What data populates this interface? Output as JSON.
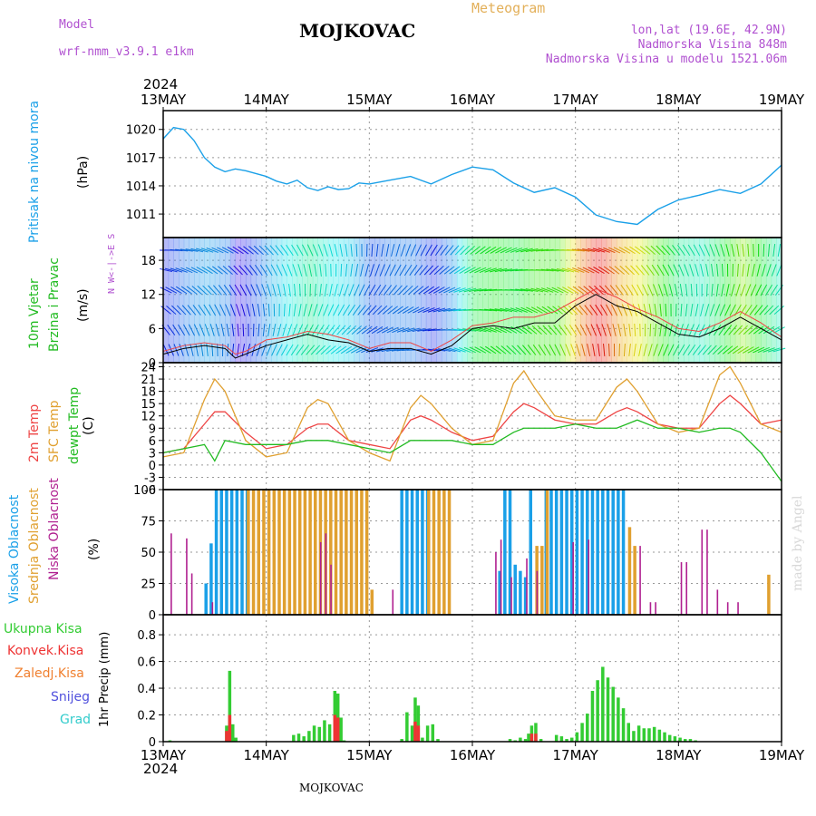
{
  "header": {
    "model_label": "Model",
    "model_name": "wrf-nmm_v3.9.1 e1km",
    "meteogram": "Meteogram",
    "station": "MOJKOVAC",
    "coords": "lon,lat (19.6E, 42.9N)",
    "elevation": "Nadmorska Visina 848m",
    "model_elevation": "Nadmorska Visina u modelu 1521.06m",
    "footer_station": "MOJKOVAC",
    "watermark": "made by Angel"
  },
  "time_axis": {
    "year": "2024",
    "labels": [
      "13MAY",
      "14MAY",
      "15MAY",
      "16MAY",
      "17MAY",
      "18MAY",
      "19MAY"
    ]
  },
  "panels": {
    "pressure": {
      "label": "Pritisak na nivou mora",
      "unit": "(hPa)"
    },
    "wind": {
      "label1": "10m Vjetar",
      "label2": "Brzina i Pravac",
      "unit": "(m/s)",
      "compass": "N  W<-|->E  S"
    },
    "temp": {
      "label1": "2m Temp",
      "label2": "SFC Temp",
      "label3": "dewpt Temp",
      "unit": "(C)"
    },
    "cloud": {
      "label1": "Visoka Oblacnost",
      "label2": "Srednja Oblacnost",
      "label3": "Niska Oblacnost",
      "unit": "(%)"
    },
    "precip": {
      "unit": "1hr Precip (mm)",
      "legend": [
        "Ukupna Kisa",
        "Konvek.Kisa",
        "Zaledj.Kisa",
        "Snijeg",
        "Grad"
      ]
    }
  },
  "colors": {
    "pressure": "#1aa0e8",
    "temp2m": "#ee4444",
    "sfc": "#e0a030",
    "dew": "#22bb22",
    "cloud_high": "#1aa0e8",
    "cloud_mid": "#e0a030",
    "cloud_low": "#b02090",
    "rain": "#33cc33",
    "conv": "#ee3333",
    "frz": "#f08030",
    "snow": "#5050dd",
    "hail": "#33cccc"
  },
  "chart_data": [
    {
      "type": "line",
      "title": "Pritisak na nivou mora",
      "ylabel": "(hPa)",
      "ylim": [
        1008.5,
        1022
      ],
      "yticks": [
        1011,
        1014,
        1017,
        1020
      ],
      "x_days": [
        0,
        0.1,
        0.2,
        0.3,
        0.4,
        0.5,
        0.6,
        0.7,
        0.8,
        0.9,
        1.0,
        1.1,
        1.2,
        1.3,
        1.4,
        1.5,
        1.6,
        1.7,
        1.8,
        1.9,
        2.0,
        2.2,
        2.4,
        2.6,
        2.8,
        3.0,
        3.2,
        3.4,
        3.6,
        3.8,
        4.0,
        4.2,
        4.4,
        4.6,
        4.8,
        5.0,
        5.2,
        5.4,
        5.6,
        5.8,
        6.0
      ],
      "values": [
        1019,
        1020.2,
        1020,
        1018.8,
        1017,
        1016,
        1015.5,
        1015.8,
        1015.6,
        1015.3,
        1015,
        1014.5,
        1014.2,
        1014.6,
        1013.8,
        1013.5,
        1013.9,
        1013.6,
        1013.7,
        1014.3,
        1014.2,
        1014.6,
        1015,
        1014.2,
        1015.2,
        1016,
        1015.7,
        1014.3,
        1013.3,
        1013.8,
        1012.8,
        1010.9,
        1010.2,
        1009.9,
        1011.5,
        1012.5,
        1013,
        1013.6,
        1013.2,
        1014.2,
        1016.2
      ],
      "color": "#1aa0e8"
    },
    {
      "type": "line",
      "title": "10m Vjetar Brzina i Pravac",
      "ylabel": "(m/s)",
      "ylim": [
        0,
        22
      ],
      "yticks": [
        0,
        6,
        12,
        18
      ],
      "x_days": [
        0,
        0.2,
        0.4,
        0.6,
        0.7,
        0.8,
        1.0,
        1.2,
        1.4,
        1.6,
        1.8,
        2.0,
        2.2,
        2.4,
        2.6,
        2.8,
        3.0,
        3.2,
        3.4,
        3.6,
        3.8,
        4.0,
        4.2,
        4.4,
        4.6,
        4.8,
        5.0,
        5.2,
        5.4,
        5.6,
        5.8,
        6.0
      ],
      "speed": [
        1.5,
        2.5,
        3,
        2.5,
        0.8,
        1.5,
        3,
        4,
        5,
        4,
        3.5,
        2,
        2.5,
        2.5,
        1.5,
        3,
        6,
        6.5,
        6,
        7,
        7,
        10,
        12,
        10,
        9,
        7,
        5,
        4.5,
        6,
        8,
        6,
        4
      ],
      "gust": [
        2,
        3,
        3.5,
        3,
        1.5,
        2,
        4,
        4.5,
        5.5,
        5,
        4,
        2.5,
        3.5,
        3.5,
        2,
        4,
        6.5,
        7,
        8,
        8,
        9,
        11,
        13,
        11.5,
        9.5,
        8,
        6,
        5.5,
        7,
        9,
        7,
        4.5
      ]
    },
    {
      "type": "line",
      "title": "Temperature",
      "ylabel": "(C)",
      "ylim": [
        -6,
        25
      ],
      "yticks": [
        -6,
        -3,
        0,
        3,
        6,
        9,
        12,
        15,
        18,
        21,
        24
      ],
      "x_days": [
        0,
        0.2,
        0.4,
        0.5,
        0.6,
        0.8,
        1.0,
        1.2,
        1.4,
        1.5,
        1.6,
        1.8,
        2.0,
        2.2,
        2.4,
        2.5,
        2.6,
        2.8,
        3.0,
        3.2,
        3.4,
        3.5,
        3.6,
        3.8,
        4.0,
        4.2,
        4.4,
        4.5,
        4.6,
        4.8,
        5.0,
        5.2,
        5.4,
        5.5,
        5.6,
        5.8,
        6.0
      ],
      "series": [
        {
          "name": "2m Temp",
          "color": "#ee4444",
          "values": [
            3,
            4,
            10,
            13,
            13,
            8,
            4,
            5,
            9,
            10,
            10,
            6,
            5,
            4,
            11,
            12,
            11,
            8,
            6,
            7,
            13,
            15,
            14,
            11,
            10,
            10,
            13,
            14,
            13,
            10,
            9,
            9,
            15,
            17,
            15,
            10,
            11
          ]
        },
        {
          "name": "SFC Temp",
          "color": "#e0a030",
          "values": [
            2,
            3,
            16,
            21,
            18,
            6,
            2,
            3,
            14,
            16,
            15,
            6,
            3,
            1,
            14,
            17,
            15,
            9,
            5,
            6,
            20,
            23,
            19,
            12,
            11,
            11,
            19,
            21,
            18,
            10,
            8,
            9,
            22,
            24,
            20,
            10,
            8
          ]
        },
        {
          "name": "dewpt Temp",
          "color": "#22bb22",
          "values": [
            3,
            4,
            5,
            1,
            6,
            5,
            5,
            5,
            6,
            6,
            6,
            5,
            4,
            3,
            6,
            6,
            6,
            6,
            5,
            5,
            8,
            9,
            9,
            9,
            10,
            9,
            9,
            10,
            11,
            9,
            9,
            8,
            9,
            9,
            8,
            3,
            -4
          ]
        }
      ]
    },
    {
      "type": "bar",
      "title": "Oblacnost",
      "ylabel": "(%)",
      "ylim": [
        0,
        100
      ],
      "yticks": [
        0,
        25,
        50,
        75,
        100
      ],
      "series": [
        {
          "name": "Visoka Oblacnost",
          "color": "#1aa0e8",
          "x_days": [
            0.4,
            0.45,
            0.5,
            0.55,
            0.6,
            0.65,
            0.7,
            0.75,
            0.8,
            2.3,
            2.35,
            2.4,
            2.45,
            2.5,
            2.55,
            3.25,
            3.3,
            3.35,
            3.4,
            3.45,
            3.5,
            3.55,
            3.7,
            3.75,
            3.8,
            3.85,
            3.9,
            3.95,
            4.0,
            4.05,
            4.1,
            4.15,
            4.2,
            4.25,
            4.3,
            4.35,
            4.4,
            4.45
          ],
          "values": [
            25,
            57,
            100,
            100,
            100,
            100,
            100,
            100,
            100,
            100,
            100,
            100,
            100,
            100,
            100,
            35,
            100,
            100,
            40,
            35,
            30,
            100,
            100,
            100,
            100,
            100,
            100,
            100,
            100,
            100,
            100,
            100,
            100,
            100,
            100,
            100,
            100,
            100
          ]
        },
        {
          "name": "Srednja Oblacnost",
          "color": "#e0a030",
          "x_days": [
            0.8,
            0.85,
            0.9,
            0.95,
            1.0,
            1.05,
            1.1,
            1.15,
            1.2,
            1.25,
            1.3,
            1.35,
            1.4,
            1.45,
            1.5,
            1.55,
            1.6,
            1.65,
            1.7,
            1.75,
            1.8,
            1.85,
            1.9,
            1.95,
            2.0,
            2.55,
            2.6,
            2.65,
            2.7,
            2.75,
            3.6,
            3.65,
            3.7,
            4.5,
            4.55,
            5.85
          ],
          "values": [
            100,
            100,
            100,
            100,
            100,
            100,
            100,
            100,
            100,
            100,
            100,
            100,
            100,
            100,
            100,
            100,
            100,
            100,
            100,
            100,
            100,
            100,
            100,
            100,
            20,
            100,
            100,
            100,
            100,
            100,
            55,
            55,
            100,
            70,
            55,
            32
          ]
        },
        {
          "name": "Niska Oblacnost",
          "color": "#b02090",
          "x_days": [
            0.05,
            0.2,
            0.25,
            0.45,
            1.5,
            1.55,
            1.6,
            2.2,
            3.2,
            3.25,
            3.35,
            3.5,
            3.6,
            3.95,
            4.1,
            4.6,
            4.7,
            4.75,
            5.0,
            5.05,
            5.2,
            5.25,
            5.35,
            5.45,
            5.55
          ],
          "values": [
            65,
            61,
            33,
            10,
            58,
            65,
            40,
            20,
            50,
            60,
            30,
            45,
            35,
            58,
            60,
            55,
            10,
            10,
            42,
            42,
            68,
            68,
            20,
            10,
            10
          ]
        }
      ]
    },
    {
      "type": "bar",
      "title": "1hr Precip",
      "ylabel": "1hr Precip (mm)",
      "ylim": [
        0,
        0.95
      ],
      "yticks": [
        0,
        0.2,
        0.4,
        0.6,
        0.8
      ],
      "series": [
        {
          "name": "Ukupna Kisa",
          "color": "#33cc33",
          "x_days": [
            0.05,
            0.6,
            0.63,
            0.66,
            0.69,
            1.25,
            1.3,
            1.35,
            1.4,
            1.45,
            1.5,
            1.55,
            1.6,
            1.65,
            1.68,
            1.71,
            1.74,
            2.3,
            2.35,
            2.4,
            2.43,
            2.46,
            2.5,
            2.55,
            2.6,
            2.65,
            3.35,
            3.4,
            3.45,
            3.5,
            3.53,
            3.56,
            3.6,
            3.65,
            3.8,
            3.85,
            3.9,
            3.95,
            4.0,
            4.05,
            4.1,
            4.15,
            4.2,
            4.25,
            4.3,
            4.35,
            4.4,
            4.45,
            4.5,
            4.55,
            4.6,
            4.65,
            4.7,
            4.75,
            4.8,
            4.85,
            4.9,
            4.95,
            5.0,
            5.05,
            5.1,
            5.15
          ],
          "values": [
            0.01,
            0.12,
            0.53,
            0.13,
            0.03,
            0.05,
            0.06,
            0.04,
            0.08,
            0.12,
            0.11,
            0.16,
            0.13,
            0.38,
            0.36,
            0.18,
            0.01,
            0.02,
            0.22,
            0.12,
            0.33,
            0.27,
            0.03,
            0.12,
            0.13,
            0.02,
            0.02,
            0.01,
            0.03,
            0.02,
            0.06,
            0.12,
            0.14,
            0.02,
            0.05,
            0.04,
            0.02,
            0.03,
            0.07,
            0.14,
            0.21,
            0.38,
            0.46,
            0.56,
            0.48,
            0.41,
            0.33,
            0.25,
            0.14,
            0.08,
            0.12,
            0.1,
            0.1,
            0.11,
            0.09,
            0.07,
            0.05,
            0.04,
            0.03,
            0.02,
            0.02,
            0.01
          ]
        },
        {
          "name": "Konvek.Kisa",
          "color": "#ee3333",
          "x_days": [
            0.6,
            0.63,
            1.65,
            1.68,
            2.43,
            2.46,
            3.56,
            3.6
          ],
          "values": [
            0.08,
            0.2,
            0.2,
            0.18,
            0.15,
            0.12,
            0.06,
            0.06
          ]
        }
      ]
    }
  ]
}
